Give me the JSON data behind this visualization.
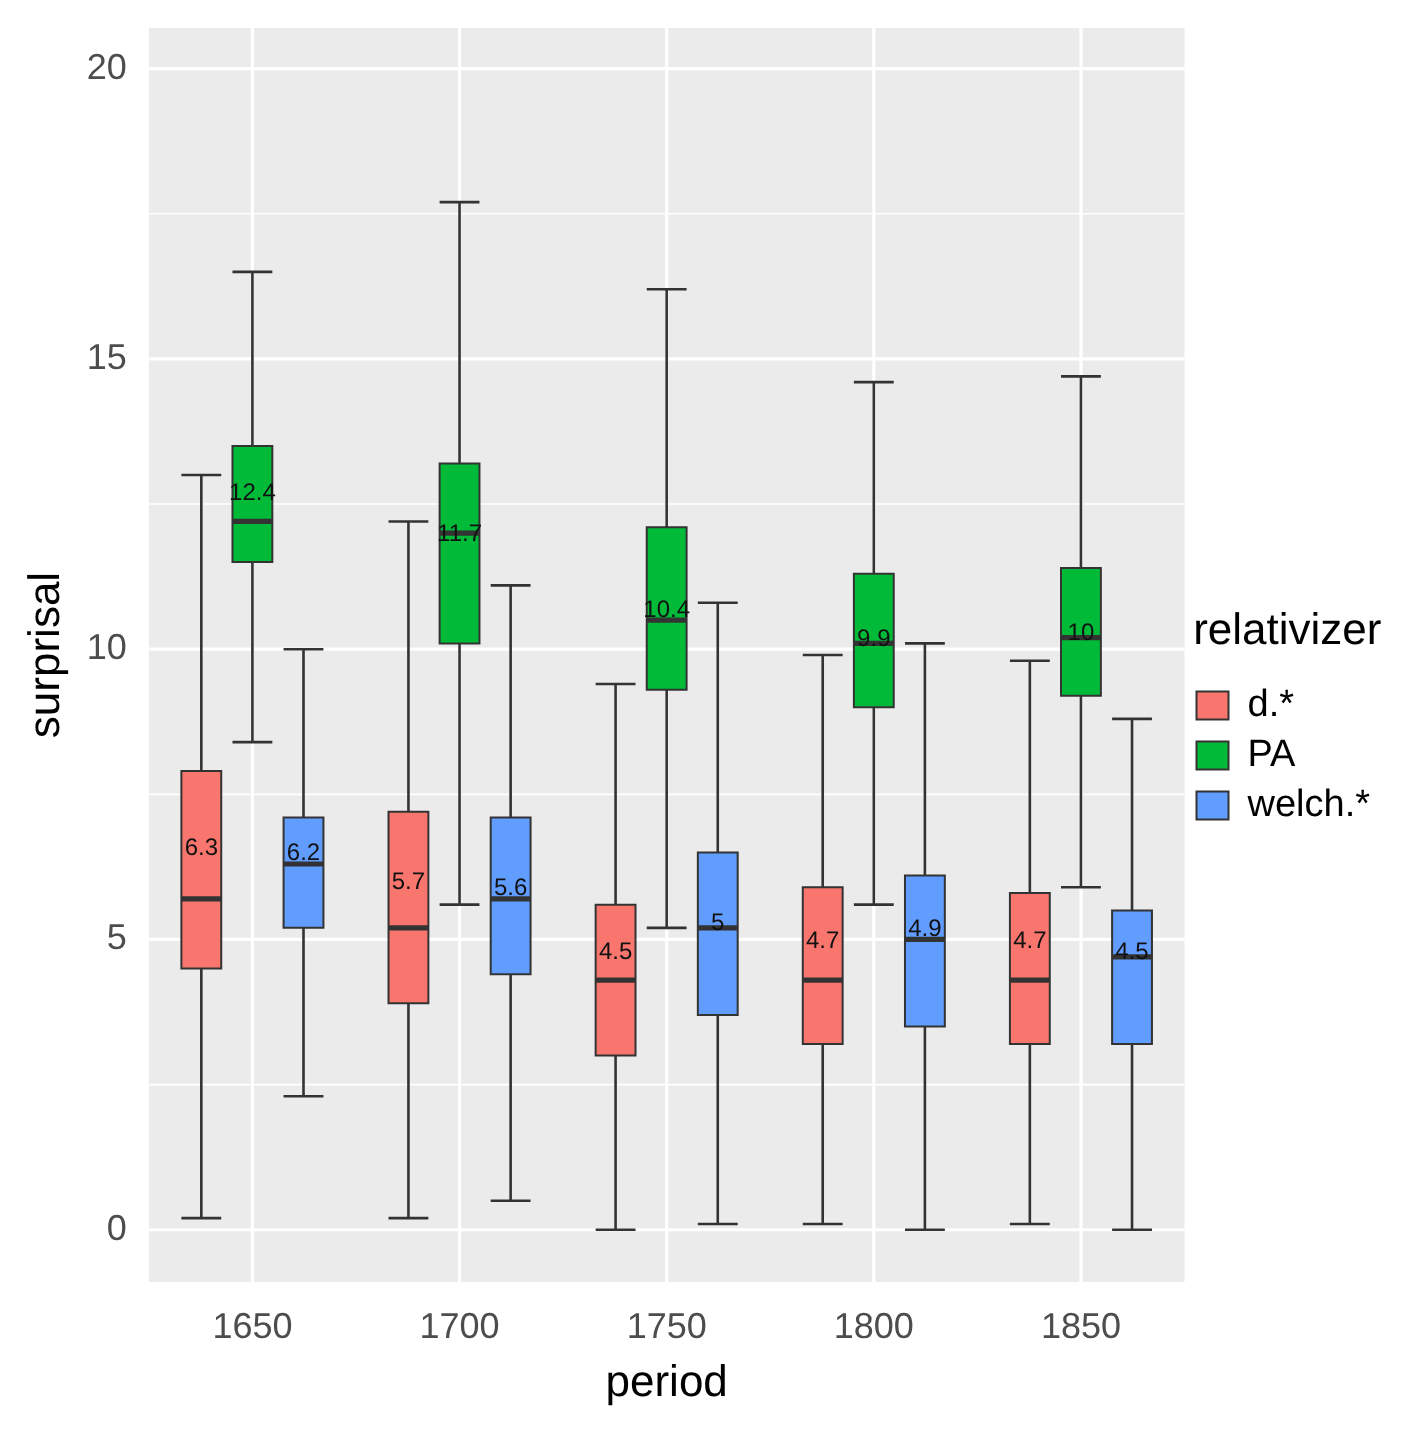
{
  "chart_data": {
    "type": "box",
    "xlabel": "period",
    "ylabel": "surprisal",
    "legend_title": "relativizer",
    "legend": "right",
    "grid": true,
    "categories": [
      "1650",
      "1700",
      "1750",
      "1800",
      "1850"
    ],
    "ylim": [
      -0.9,
      20.7
    ],
    "yticks": [
      0,
      5,
      10,
      15,
      20
    ],
    "series": [
      {
        "name": "d.*",
        "color": "#f8766d",
        "value_labels": [
          "6.3",
          "5.7",
          "4.5",
          "4.7",
          "4.7"
        ],
        "boxes": [
          {
            "low": 0.2,
            "q1": 4.5,
            "median": 5.7,
            "q3": 7.9,
            "high": 13.0
          },
          {
            "low": 0.2,
            "q1": 3.9,
            "median": 5.2,
            "q3": 7.2,
            "high": 12.2
          },
          {
            "low": 0.0,
            "q1": 3.0,
            "median": 4.3,
            "q3": 5.6,
            "high": 9.4
          },
          {
            "low": 0.1,
            "q1": 3.2,
            "median": 4.3,
            "q3": 5.9,
            "high": 9.9
          },
          {
            "low": 0.1,
            "q1": 3.2,
            "median": 4.3,
            "q3": 5.8,
            "high": 9.8
          }
        ]
      },
      {
        "name": "PA",
        "color": "#00ba38",
        "value_labels": [
          "12.4",
          "11.7",
          "10.4",
          "9.9",
          "10"
        ],
        "boxes": [
          {
            "low": 8.4,
            "q1": 11.5,
            "median": 12.2,
            "q3": 13.5,
            "high": 16.5
          },
          {
            "low": 5.6,
            "q1": 10.1,
            "median": 12.0,
            "q3": 13.2,
            "high": 17.7
          },
          {
            "low": 5.2,
            "q1": 9.3,
            "median": 10.5,
            "q3": 12.1,
            "high": 16.2
          },
          {
            "low": 5.6,
            "q1": 9.0,
            "median": 10.1,
            "q3": 11.3,
            "high": 14.6
          },
          {
            "low": 5.9,
            "q1": 9.2,
            "median": 10.2,
            "q3": 11.4,
            "high": 14.7
          }
        ]
      },
      {
        "name": "welch.*",
        "color": "#619cff",
        "value_labels": [
          "6.2",
          "5.6",
          "5",
          "4.9",
          "4.5"
        ],
        "boxes": [
          {
            "low": 2.3,
            "q1": 5.2,
            "median": 6.3,
            "q3": 7.1,
            "high": 10.0
          },
          {
            "low": 0.5,
            "q1": 4.4,
            "median": 5.7,
            "q3": 7.1,
            "high": 11.1
          },
          {
            "low": 0.1,
            "q1": 3.7,
            "median": 5.2,
            "q3": 6.5,
            "high": 10.8
          },
          {
            "low": 0.0,
            "q1": 3.5,
            "median": 5.0,
            "q3": 6.1,
            "high": 10.1
          },
          {
            "low": 0.0,
            "q1": 3.2,
            "median": 4.7,
            "q3": 5.5,
            "high": 8.8
          }
        ]
      }
    ]
  }
}
